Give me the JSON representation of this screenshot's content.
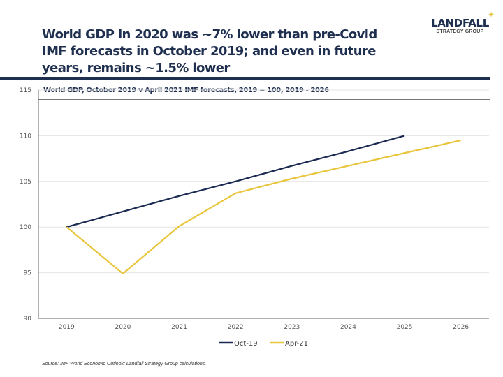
{
  "header": {
    "title": "World GDP in 2020 was ~7% lower than pre-Covid IMF forecasts in October 2019; and even in future years, remains ~1.5% lower",
    "logo_main": "LANDFALL",
    "logo_sub": "STRATEGY GROUP",
    "logo_icon": "star-icon"
  },
  "subtitle": "World GDP, October 2019 v April 2021 IMF forecasts, 2019 = 100, 2019 - 2026",
  "source": "Source: IMF World Economic Outlook; Landfall Strategy Group calculations.",
  "chart_data": {
    "type": "line",
    "title": "World GDP, October 2019 v April 2021 IMF forecasts, 2019 = 100, 2019 - 2026",
    "xlabel": "",
    "ylabel": "",
    "x": [
      "2019",
      "2020",
      "2021",
      "2022",
      "2023",
      "2024",
      "2025",
      "2026"
    ],
    "ylim": [
      90,
      115
    ],
    "yticks": [
      90,
      95,
      100,
      105,
      110,
      115
    ],
    "grid": true,
    "legend": "bottom",
    "series": [
      {
        "name": "Oct-19",
        "color": "#1a2a50",
        "values": [
          100,
          101.7,
          103.4,
          105.0,
          106.7,
          108.3,
          110.0,
          null
        ]
      },
      {
        "name": "Apr-21",
        "color": "#e8c53a",
        "values": [
          100,
          94.9,
          100.1,
          103.7,
          105.3,
          106.7,
          108.1,
          109.5
        ]
      }
    ]
  }
}
